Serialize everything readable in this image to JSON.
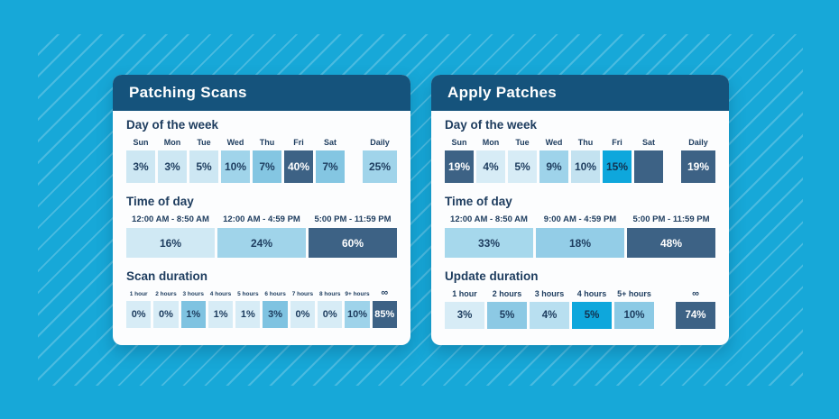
{
  "theme": {
    "page_bg": "#17a8d8",
    "header_bg": "#15537c",
    "dark_cell": "#3d6285",
    "accent_cyan": "#0ea7dc",
    "text_navy": "#1d3c5e"
  },
  "cards": [
    {
      "title": "Patching Scans",
      "day": {
        "title": "Day of the week",
        "cells": [
          {
            "label": "Sun",
            "value": "3%",
            "bg": "#cde7f3",
            "fg": "#1d3c5e"
          },
          {
            "label": "Mon",
            "value": "3%",
            "bg": "#cde7f3",
            "fg": "#1d3c5e"
          },
          {
            "label": "Tue",
            "value": "5%",
            "bg": "#cde7f3",
            "fg": "#1d3c5e"
          },
          {
            "label": "Wed",
            "value": "10%",
            "bg": "#a0d4ea",
            "fg": "#1d3c5e"
          },
          {
            "label": "Thu",
            "value": "7%",
            "bg": "#84c6e2",
            "fg": "#1d3c5e"
          },
          {
            "label": "Fri",
            "value": "40%",
            "bg": "#3d6285",
            "fg": "#ffffff"
          },
          {
            "label": "Sat",
            "value": "7%",
            "bg": "#84c6e2",
            "fg": "#1d3c5e"
          }
        ],
        "daily": {
          "label": "Daily",
          "value": "25%",
          "bg": "#a0d4ea",
          "fg": "#1d3c5e"
        }
      },
      "time": {
        "title": "Time of day",
        "cells": [
          {
            "label": "12:00 AM - 8:50 AM",
            "value": "16%",
            "bg": "#d0e9f4",
            "fg": "#1d3c5e"
          },
          {
            "label": "12:00 AM - 4:59 PM",
            "value": "24%",
            "bg": "#a0d4ea",
            "fg": "#1d3c5e"
          },
          {
            "label": "5:00 PM - 11:59 PM",
            "value": "60%",
            "bg": "#3d6285",
            "fg": "#ffffff"
          }
        ]
      },
      "duration": {
        "title": "Scan duration",
        "cells": [
          {
            "label": "1 hour",
            "value": "0%",
            "bg": "#d7ecf6",
            "fg": "#1d3c5e"
          },
          {
            "label": "2 hours",
            "value": "0%",
            "bg": "#d7ecf6",
            "fg": "#1d3c5e"
          },
          {
            "label": "3 hours",
            "value": "1%",
            "bg": "#7fc3e1",
            "fg": "#1d3c5e"
          },
          {
            "label": "4 hours",
            "value": "1%",
            "bg": "#d7ecf6",
            "fg": "#1d3c5e"
          },
          {
            "label": "5 hours",
            "value": "1%",
            "bg": "#d7ecf6",
            "fg": "#1d3c5e"
          },
          {
            "label": "6 hours",
            "value": "3%",
            "bg": "#7fc3e1",
            "fg": "#1d3c5e"
          },
          {
            "label": "7 hours",
            "value": "0%",
            "bg": "#d7ecf6",
            "fg": "#1d3c5e"
          },
          {
            "label": "8 hours",
            "value": "0%",
            "bg": "#d7ecf6",
            "fg": "#1d3c5e"
          },
          {
            "label": "9+ hours",
            "value": "10%",
            "bg": "#9ed3ea",
            "fg": "#1d3c5e"
          },
          {
            "label": "∞",
            "value": "85%",
            "bg": "#3d6285",
            "fg": "#ffffff"
          }
        ]
      }
    },
    {
      "title": "Apply Patches",
      "day": {
        "title": "Day of the week",
        "cells": [
          {
            "label": "Sun",
            "value": "19%",
            "bg": "#3d6285",
            "fg": "#ffffff"
          },
          {
            "label": "Mon",
            "value": "4%",
            "bg": "#d7ecf6",
            "fg": "#1d3c5e"
          },
          {
            "label": "Tue",
            "value": "5%",
            "bg": "#d7ecf6",
            "fg": "#1d3c5e"
          },
          {
            "label": "Wed",
            "value": "9%",
            "bg": "#9ed3ea",
            "fg": "#1d3c5e"
          },
          {
            "label": "Thu",
            "value": "10%",
            "bg": "#c3e2f0",
            "fg": "#1d3c5e"
          },
          {
            "label": "Fri",
            "value": "15%",
            "bg": "#0ea7dc",
            "fg": "#12324f"
          },
          {
            "label": "Sat",
            "value": "",
            "bg": "#3d6285",
            "fg": "#ffffff"
          }
        ],
        "daily": {
          "label": "Daily",
          "value": "19%",
          "bg": "#3d6285",
          "fg": "#ffffff"
        }
      },
      "time": {
        "title": "Time of day",
        "cells": [
          {
            "label": "12:00 AM - 8:50 AM",
            "value": "33%",
            "bg": "#a6d8ec",
            "fg": "#1d3c5e"
          },
          {
            "label": "9:00 AM - 4:59 PM",
            "value": "18%",
            "bg": "#93cde7",
            "fg": "#1d3c5e"
          },
          {
            "label": "5:00 PM - 11:59 PM",
            "value": "48%",
            "bg": "#3d6285",
            "fg": "#ffffff"
          }
        ]
      },
      "duration": {
        "title": "Update duration",
        "cells": [
          {
            "label": "1 hour",
            "value": "3%",
            "bg": "#d7ecf6",
            "fg": "#1d3c5e"
          },
          {
            "label": "2 hours",
            "value": "5%",
            "bg": "#8cc9e4",
            "fg": "#1d3c5e"
          },
          {
            "label": "3 hours",
            "value": "4%",
            "bg": "#b8dff0",
            "fg": "#1d3c5e"
          },
          {
            "label": "4 hours",
            "value": "5%",
            "bg": "#0ea7dc",
            "fg": "#12324f"
          },
          {
            "label": "5+ hours",
            "value": "10%",
            "bg": "#8ccae5",
            "fg": "#1d3c5e"
          }
        ],
        "infinity": {
          "label": "∞",
          "value": "74%",
          "bg": "#3d6285",
          "fg": "#ffffff"
        }
      }
    }
  ],
  "chart_data": [
    {
      "type": "heatmap",
      "title": "Patching Scans",
      "groups": [
        {
          "label": "Day of the week",
          "categories": [
            "Sun",
            "Mon",
            "Tue",
            "Wed",
            "Thu",
            "Fri",
            "Sat",
            "Daily"
          ],
          "values": [
            3,
            3,
            5,
            10,
            7,
            40,
            7,
            25
          ],
          "unit": "%"
        },
        {
          "label": "Time of day",
          "categories": [
            "12:00 AM - 8:50 AM",
            "12:00 AM - 4:59 PM",
            "5:00 PM - 11:59 PM"
          ],
          "values": [
            16,
            24,
            60
          ],
          "unit": "%"
        },
        {
          "label": "Scan duration",
          "categories": [
            "1 hour",
            "2 hours",
            "3 hours",
            "4 hours",
            "5 hours",
            "6 hours",
            "7 hours",
            "8 hours",
            "9+ hours",
            "∞"
          ],
          "values": [
            0,
            0,
            1,
            1,
            1,
            3,
            0,
            0,
            10,
            85
          ],
          "unit": "%"
        }
      ]
    },
    {
      "type": "heatmap",
      "title": "Apply Patches",
      "groups": [
        {
          "label": "Day of the week",
          "categories": [
            "Sun",
            "Mon",
            "Tue",
            "Wed",
            "Thu",
            "Fri",
            "Sat",
            "Daily"
          ],
          "values": [
            19,
            4,
            5,
            9,
            10,
            15,
            null,
            19
          ],
          "unit": "%"
        },
        {
          "label": "Time of day",
          "categories": [
            "12:00 AM - 8:50 AM",
            "9:00 AM - 4:59 PM",
            "5:00 PM - 11:59 PM"
          ],
          "values": [
            33,
            18,
            48
          ],
          "unit": "%"
        },
        {
          "label": "Update duration",
          "categories": [
            "1 hour",
            "2 hours",
            "3 hours",
            "4 hours",
            "5+ hours",
            "∞"
          ],
          "values": [
            3,
            5,
            4,
            5,
            10,
            74
          ],
          "unit": "%"
        }
      ]
    }
  ]
}
